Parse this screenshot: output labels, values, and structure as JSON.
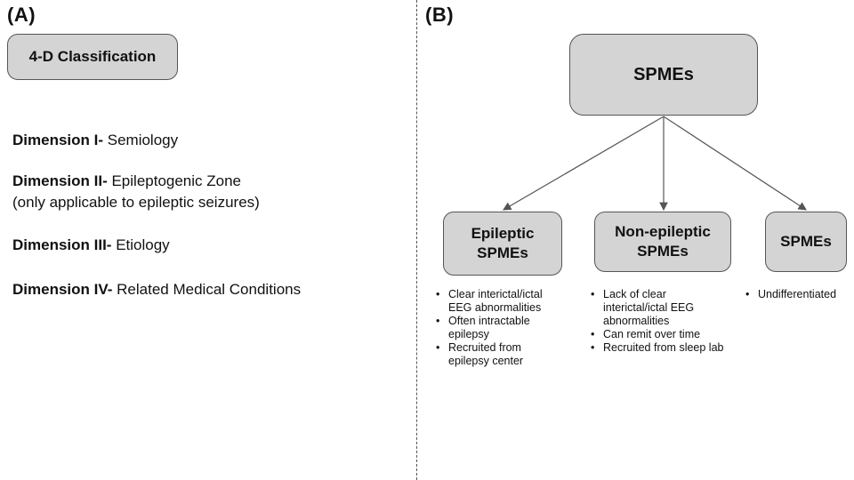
{
  "panel_a": {
    "label": "(A)",
    "box_title": "4-D Classification",
    "dimensions": [
      {
        "name": "Dimension I-",
        "desc": "Semiology",
        "desc2": ""
      },
      {
        "name": "Dimension II-",
        "desc": "Epileptogenic Zone",
        "desc2": "(only applicable to epileptic seizures)"
      },
      {
        "name": "Dimension III-",
        "desc": "Etiology",
        "desc2": ""
      },
      {
        "name": "Dimension IV-",
        "desc": "Related Medical Conditions",
        "desc2": ""
      }
    ]
  },
  "panel_b": {
    "label": "(B)",
    "root": "SPMEs",
    "children": [
      {
        "line1": "Epileptic",
        "line2": "SPMEs",
        "bullets": [
          "Clear interictal/ictal EEG abnormalities",
          "Often intractable epilepsy",
          "Recruited from epilepsy center"
        ]
      },
      {
        "line1": "Non-epileptic",
        "line2": "SPMEs",
        "bullets": [
          "Lack of clear interictal/ictal EEG abnormalities",
          "Can remit over time",
          "Recruited from sleep lab"
        ]
      },
      {
        "line1": "SPMEs",
        "line2": "",
        "bullets": [
          "Undifferentiated"
        ]
      }
    ]
  },
  "colors": {
    "box_fill": "#d4d4d4",
    "box_border": "#555555",
    "arrow": "#555555"
  }
}
